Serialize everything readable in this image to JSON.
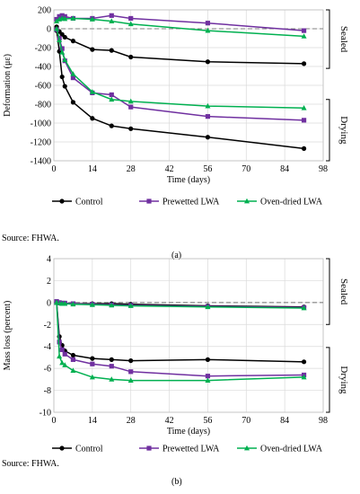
{
  "chart_data": [
    {
      "type": "line",
      "panel_label": "(a)",
      "source": "Source: FHWA.",
      "xlabel": "Time (days)",
      "ylabel": "Deformation (με)",
      "xlim": [
        0,
        98
      ],
      "ylim": [
        -1400,
        200
      ],
      "xticks": [
        0,
        14,
        28,
        42,
        56,
        70,
        84,
        98
      ],
      "yticks": [
        200,
        0,
        -200,
        -400,
        -600,
        -800,
        -1000,
        -1200,
        -1400
      ],
      "grid": true,
      "reference_line": 0,
      "legend_position": "bottom",
      "group_labels": {
        "upper": "Sealed",
        "lower": "Drying"
      },
      "series": [
        {
          "name": "Control",
          "color": "#000000",
          "marker": "circle",
          "group": "sealed",
          "x": [
            1,
            2,
            3,
            4,
            7,
            14,
            21,
            28,
            56,
            91
          ],
          "y": [
            20,
            -30,
            -60,
            -90,
            -130,
            -220,
            -230,
            -300,
            -350,
            -370
          ]
        },
        {
          "name": "Prewetted LWA",
          "color": "#7030a0",
          "marker": "square",
          "group": "sealed",
          "x": [
            1,
            2,
            3,
            4,
            7,
            14,
            21,
            28,
            56,
            91
          ],
          "y": [
            100,
            130,
            140,
            130,
            110,
            110,
            140,
            110,
            60,
            -20
          ]
        },
        {
          "name": "Oven-dried LWA",
          "color": "#00b050",
          "marker": "triangle",
          "group": "sealed",
          "x": [
            1,
            2,
            3,
            4,
            7,
            14,
            21,
            28,
            56,
            91
          ],
          "y": [
            80,
            100,
            110,
            105,
            110,
            100,
            80,
            50,
            -20,
            -80
          ]
        },
        {
          "name": "Control",
          "color": "#000000",
          "marker": "circle",
          "group": "drying",
          "x": [
            1,
            2,
            3,
            4,
            7,
            14,
            21,
            28,
            56,
            91
          ],
          "y": [
            -20,
            -240,
            -510,
            -610,
            -780,
            -950,
            -1030,
            -1060,
            -1150,
            -1270
          ]
        },
        {
          "name": "Prewetted LWA",
          "color": "#7030a0",
          "marker": "square",
          "group": "drying",
          "x": [
            1,
            2,
            3,
            4,
            7,
            14,
            21,
            28,
            56,
            91
          ],
          "y": [
            -10,
            -100,
            -210,
            -340,
            -520,
            -680,
            -700,
            -830,
            -930,
            -970
          ]
        },
        {
          "name": "Oven-dried LWA",
          "color": "#00b050",
          "marker": "triangle",
          "group": "drying",
          "x": [
            1,
            2,
            3,
            4,
            7,
            14,
            21,
            28,
            56,
            91
          ],
          "y": [
            0,
            -120,
            -250,
            -330,
            -480,
            -670,
            -750,
            -770,
            -820,
            -840
          ]
        }
      ]
    },
    {
      "type": "line",
      "panel_label": "(b)",
      "source": "Source: FHWA.",
      "xlabel": "Time (days)",
      "ylabel": "Mass loss (percent)",
      "xlim": [
        0,
        98
      ],
      "ylim": [
        -10,
        4
      ],
      "xticks": [
        0,
        14,
        28,
        42,
        56,
        70,
        84,
        98
      ],
      "yticks": [
        4,
        2,
        0,
        -2,
        -4,
        -6,
        -8,
        -10
      ],
      "grid": true,
      "reference_line": 0,
      "legend_position": "bottom",
      "group_labels": {
        "upper": "Sealed",
        "lower": "Drying"
      },
      "series": [
        {
          "name": "Control",
          "color": "#000000",
          "marker": "circle",
          "group": "sealed",
          "x": [
            1,
            2,
            3,
            4,
            7,
            14,
            21,
            28,
            56,
            91
          ],
          "y": [
            0,
            -0.05,
            -0.05,
            -0.05,
            -0.1,
            -0.1,
            -0.1,
            -0.15,
            -0.3,
            -0.4
          ]
        },
        {
          "name": "Prewetted LWA",
          "color": "#7030a0",
          "marker": "square",
          "group": "sealed",
          "x": [
            1,
            2,
            3,
            4,
            7,
            14,
            21,
            28,
            56,
            91
          ],
          "y": [
            0.1,
            0,
            -0.05,
            -0.05,
            -0.1,
            -0.15,
            -0.2,
            -0.25,
            -0.35,
            -0.45
          ]
        },
        {
          "name": "Oven-dried LWA",
          "color": "#00b050",
          "marker": "triangle",
          "group": "sealed",
          "x": [
            1,
            2,
            3,
            4,
            7,
            14,
            21,
            28,
            56,
            91
          ],
          "y": [
            0,
            -0.05,
            -0.1,
            -0.1,
            -0.15,
            -0.2,
            -0.25,
            -0.3,
            -0.4,
            -0.5
          ]
        },
        {
          "name": "Control",
          "color": "#000000",
          "marker": "circle",
          "group": "drying",
          "x": [
            1,
            2,
            3,
            4,
            7,
            14,
            21,
            28,
            56,
            91
          ],
          "y": [
            0,
            -3.1,
            -3.9,
            -4.4,
            -4.8,
            -5.1,
            -5.2,
            -5.3,
            -5.2,
            -5.4
          ]
        },
        {
          "name": "Prewetted LWA",
          "color": "#7030a0",
          "marker": "square",
          "group": "drying",
          "x": [
            1,
            2,
            3,
            4,
            7,
            14,
            21,
            28,
            56,
            91
          ],
          "y": [
            0,
            -3.6,
            -4.3,
            -4.7,
            -5.2,
            -5.6,
            -5.8,
            -6.3,
            -6.7,
            -6.6
          ]
        },
        {
          "name": "Oven-dried LWA",
          "color": "#00b050",
          "marker": "triangle",
          "group": "drying",
          "x": [
            1,
            2,
            3,
            4,
            7,
            14,
            21,
            28,
            56,
            91
          ],
          "y": [
            0,
            -4.9,
            -5.5,
            -5.7,
            -6.2,
            -6.8,
            -7.0,
            -7.1,
            -7.1,
            -6.8
          ]
        }
      ]
    }
  ]
}
